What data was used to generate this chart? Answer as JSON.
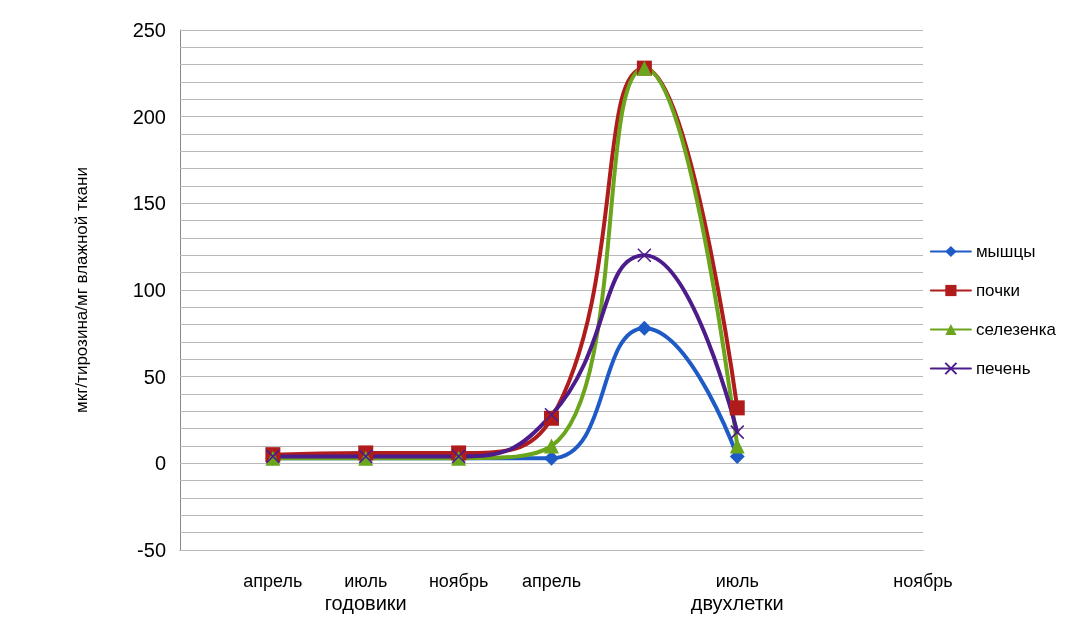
{
  "chart_data": {
    "type": "line",
    "ylabel": "мкг/тирозина/мг влажной ткани",
    "categories": [
      null,
      "апрель",
      "июль",
      "ноябрь",
      "апрель",
      null,
      "июль",
      null,
      "ноябрь"
    ],
    "series": [
      {
        "name": "мышцы",
        "color": "#1f5bc6",
        "marker": "diamond",
        "values": [
          null,
          3,
          3,
          3,
          3,
          78,
          4,
          null,
          null
        ]
      },
      {
        "name": "почки",
        "color": "#b01c1c",
        "marker": "square",
        "values": [
          null,
          5,
          6,
          6,
          26,
          228,
          32,
          null,
          null
        ]
      },
      {
        "name": "селезенка",
        "color": "#6aa51c",
        "marker": "triangle",
        "values": [
          null,
          3,
          3,
          3,
          10,
          228,
          10,
          null,
          null
        ]
      },
      {
        "name": "печень",
        "color": "#4b1c8a",
        "marker": "cross",
        "values": [
          null,
          4,
          4,
          4,
          28,
          120,
          18,
          null,
          null
        ]
      }
    ],
    "ylim": [
      -50,
      250
    ],
    "yticks": [
      -50,
      {
        "value": -40,
        "label": null
      },
      {
        "value": -30,
        "label": null
      },
      {
        "value": -20,
        "label": null
      },
      {
        "value": -10,
        "label": null
      },
      0,
      {
        "value": 10,
        "label": null
      },
      {
        "value": 20,
        "label": null
      },
      {
        "value": 30,
        "label": null
      },
      {
        "value": 40,
        "label": null
      },
      50,
      {
        "value": 60,
        "label": null
      },
      {
        "value": 70,
        "label": null
      },
      {
        "value": 80,
        "label": null
      },
      {
        "value": 90,
        "label": null
      },
      100,
      {
        "value": 110,
        "label": null
      },
      {
        "value": 120,
        "label": null
      },
      {
        "value": 130,
        "label": null
      },
      {
        "value": 140,
        "label": null
      },
      150,
      {
        "value": 160,
        "label": null
      },
      {
        "value": 170,
        "label": null
      },
      {
        "value": 180,
        "label": null
      },
      {
        "value": 190,
        "label": null
      },
      200,
      {
        "value": 210,
        "label": null
      },
      {
        "value": 220,
        "label": null
      },
      {
        "value": 230,
        "label": null
      },
      {
        "value": 240,
        "label": null
      },
      250
    ],
    "grid": "y",
    "legend": "right",
    "line_style": "solid",
    "annotations": [
      "годовики",
      "двухлетки"
    ]
  }
}
